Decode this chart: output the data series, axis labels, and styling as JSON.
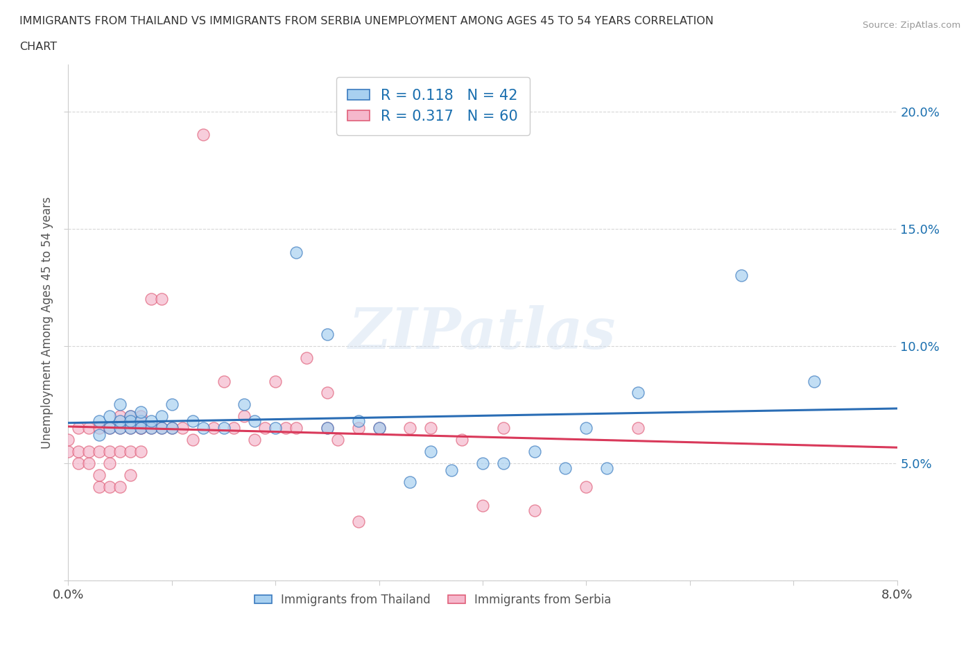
{
  "title_line1": "IMMIGRANTS FROM THAILAND VS IMMIGRANTS FROM SERBIA UNEMPLOYMENT AMONG AGES 45 TO 54 YEARS CORRELATION",
  "title_line2": "CHART",
  "source": "Source: ZipAtlas.com",
  "ylabel": "Unemployment Among Ages 45 to 54 years",
  "xlim": [
    0.0,
    0.08
  ],
  "ylim": [
    0.0,
    0.22
  ],
  "xticks": [
    0.0,
    0.01,
    0.02,
    0.03,
    0.04,
    0.05,
    0.06,
    0.07,
    0.08
  ],
  "yticks": [
    0.0,
    0.05,
    0.1,
    0.15,
    0.2
  ],
  "ytick_labels": [
    "",
    "5.0%",
    "10.0%",
    "15.0%",
    "20.0%"
  ],
  "xtick_labels": [
    "0.0%",
    "",
    "",
    "",
    "",
    "",
    "",
    "",
    "8.0%"
  ],
  "thailand_color": "#a8d0f0",
  "thailand_edge": "#3a7abf",
  "serbia_color": "#f5b8cc",
  "serbia_edge": "#e0607a",
  "thailand_R": 0.118,
  "thailand_N": 42,
  "serbia_R": 0.317,
  "serbia_N": 60,
  "legend_text_color": "#1a6faf",
  "watermark": "ZIPatlas",
  "background_color": "#ffffff",
  "thailand_scatter_x": [
    0.003,
    0.003,
    0.004,
    0.004,
    0.005,
    0.005,
    0.005,
    0.006,
    0.006,
    0.006,
    0.007,
    0.007,
    0.007,
    0.008,
    0.008,
    0.009,
    0.009,
    0.01,
    0.01,
    0.012,
    0.013,
    0.015,
    0.017,
    0.018,
    0.02,
    0.022,
    0.025,
    0.025,
    0.028,
    0.03,
    0.033,
    0.035,
    0.037,
    0.04,
    0.042,
    0.045,
    0.048,
    0.05,
    0.052,
    0.055,
    0.065,
    0.072
  ],
  "thailand_scatter_y": [
    0.062,
    0.068,
    0.065,
    0.07,
    0.065,
    0.068,
    0.075,
    0.065,
    0.07,
    0.068,
    0.068,
    0.065,
    0.072,
    0.065,
    0.068,
    0.065,
    0.07,
    0.065,
    0.075,
    0.068,
    0.065,
    0.065,
    0.075,
    0.068,
    0.065,
    0.14,
    0.105,
    0.065,
    0.068,
    0.065,
    0.042,
    0.055,
    0.047,
    0.05,
    0.05,
    0.055,
    0.048,
    0.065,
    0.048,
    0.08,
    0.13,
    0.085
  ],
  "serbia_scatter_x": [
    0.0,
    0.0,
    0.001,
    0.001,
    0.001,
    0.002,
    0.002,
    0.002,
    0.003,
    0.003,
    0.003,
    0.003,
    0.004,
    0.004,
    0.004,
    0.004,
    0.005,
    0.005,
    0.005,
    0.005,
    0.006,
    0.006,
    0.006,
    0.006,
    0.007,
    0.007,
    0.007,
    0.007,
    0.008,
    0.008,
    0.009,
    0.009,
    0.01,
    0.011,
    0.012,
    0.013,
    0.014,
    0.015,
    0.016,
    0.017,
    0.018,
    0.019,
    0.02,
    0.021,
    0.022,
    0.023,
    0.025,
    0.025,
    0.026,
    0.028,
    0.028,
    0.03,
    0.033,
    0.035,
    0.038,
    0.04,
    0.042,
    0.045,
    0.05,
    0.055
  ],
  "serbia_scatter_y": [
    0.055,
    0.06,
    0.05,
    0.055,
    0.065,
    0.05,
    0.055,
    0.065,
    0.04,
    0.055,
    0.065,
    0.045,
    0.04,
    0.055,
    0.065,
    0.05,
    0.055,
    0.065,
    0.07,
    0.04,
    0.055,
    0.065,
    0.045,
    0.07,
    0.065,
    0.07,
    0.055,
    0.065,
    0.065,
    0.12,
    0.065,
    0.12,
    0.065,
    0.065,
    0.06,
    0.19,
    0.065,
    0.085,
    0.065,
    0.07,
    0.06,
    0.065,
    0.085,
    0.065,
    0.065,
    0.095,
    0.065,
    0.08,
    0.06,
    0.025,
    0.065,
    0.065,
    0.065,
    0.065,
    0.06,
    0.032,
    0.065,
    0.03,
    0.04,
    0.065
  ]
}
